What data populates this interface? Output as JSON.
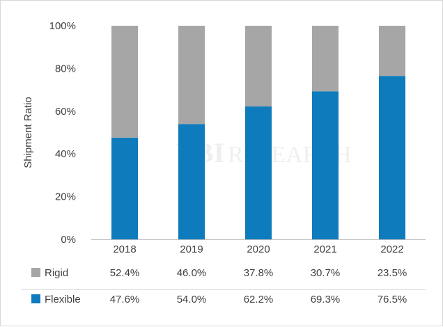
{
  "chart_data": {
    "type": "bar",
    "stacked": true,
    "categories": [
      "2018",
      "2019",
      "2020",
      "2021",
      "2022"
    ],
    "series": [
      {
        "name": "Flexible",
        "color": "#0e7bbd",
        "values": [
          47.6,
          54.0,
          62.2,
          69.3,
          76.5
        ]
      },
      {
        "name": "Rigid",
        "color": "#a6a6a6",
        "values": [
          52.4,
          46.0,
          37.8,
          30.7,
          23.5
        ]
      }
    ],
    "ylabel": "Shipment Ratio",
    "ylim": [
      0,
      100
    ],
    "yticks": [
      "0%",
      "20%",
      "40%",
      "60%",
      "80%",
      "100%"
    ],
    "data_table": {
      "rows": [
        {
          "label": "Rigid",
          "color": "#a6a6a6",
          "values": [
            "52.4%",
            "46.0%",
            "37.8%",
            "30.7%",
            "23.5%"
          ]
        },
        {
          "label": "Flexible",
          "color": "#0e7bbd",
          "values": [
            "47.6%",
            "54.0%",
            "62.2%",
            "69.3%",
            "76.5%"
          ]
        }
      ]
    },
    "watermark": "UBI RESEARCH",
    "grid": false
  }
}
